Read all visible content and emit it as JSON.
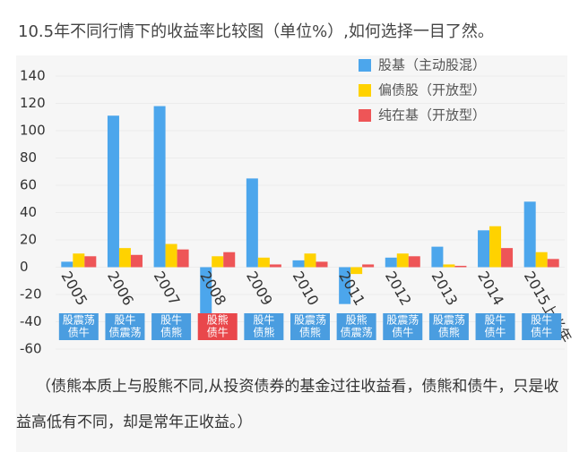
{
  "chart_data": {
    "type": "bar",
    "title": "10.5年不同行情下的收益率比较图（单位%）,如何选择一目了然。",
    "categories": [
      "2005",
      "2006",
      "2007",
      "2008",
      "2009",
      "2010",
      "2011",
      "2012",
      "2013",
      "2014",
      "2015上半年"
    ],
    "market_labels": [
      [
        "股震荡",
        "债牛"
      ],
      [
        "股牛",
        "债震荡"
      ],
      [
        "股牛",
        "债熊"
      ],
      [
        "股熊",
        "债牛"
      ],
      [
        "股牛",
        "债熊"
      ],
      [
        "股震荡",
        "债熊"
      ],
      [
        "股熊",
        "债震荡"
      ],
      [
        "股震荡",
        "债牛"
      ],
      [
        "股震荡",
        "债熊"
      ],
      [
        "股牛",
        "债牛"
      ],
      [
        "股牛",
        "债牛"
      ]
    ],
    "market_colors": [
      "#4a9de0",
      "#4a9de0",
      "#4a9de0",
      "#e9474b",
      "#4a9de0",
      "#4a9de0",
      "#4a9de0",
      "#4a9de0",
      "#4a9de0",
      "#4a9de0",
      "#4a9de0"
    ],
    "series": [
      {
        "name": "股基（主动股混）",
        "color": "#4ca6ec",
        "values": [
          4,
          111,
          118,
          -47,
          65,
          5,
          -27,
          7,
          15,
          27,
          48
        ]
      },
      {
        "name": "偏债股（开放型）",
        "color": "#ffd200",
        "values": [
          10,
          14,
          17,
          8,
          7,
          10,
          -5,
          10,
          2,
          30,
          11
        ]
      },
      {
        "name": "纯在基（开放型）",
        "color": "#ee5557",
        "values": [
          8,
          9,
          13,
          11,
          2,
          4,
          2,
          8,
          1,
          14,
          6
        ]
      }
    ],
    "ylim": [
      -60,
      140
    ],
    "yticks": [
      -60,
      -40,
      -20,
      0,
      20,
      40,
      60,
      80,
      100,
      120,
      140
    ],
    "grid": true,
    "legend": "top-right",
    "caption": "（债熊本质上与股熊不同,从投资债券的基金过往收益看，债熊和债牛，只是收益高低有不同，却是常年正收益。）"
  }
}
